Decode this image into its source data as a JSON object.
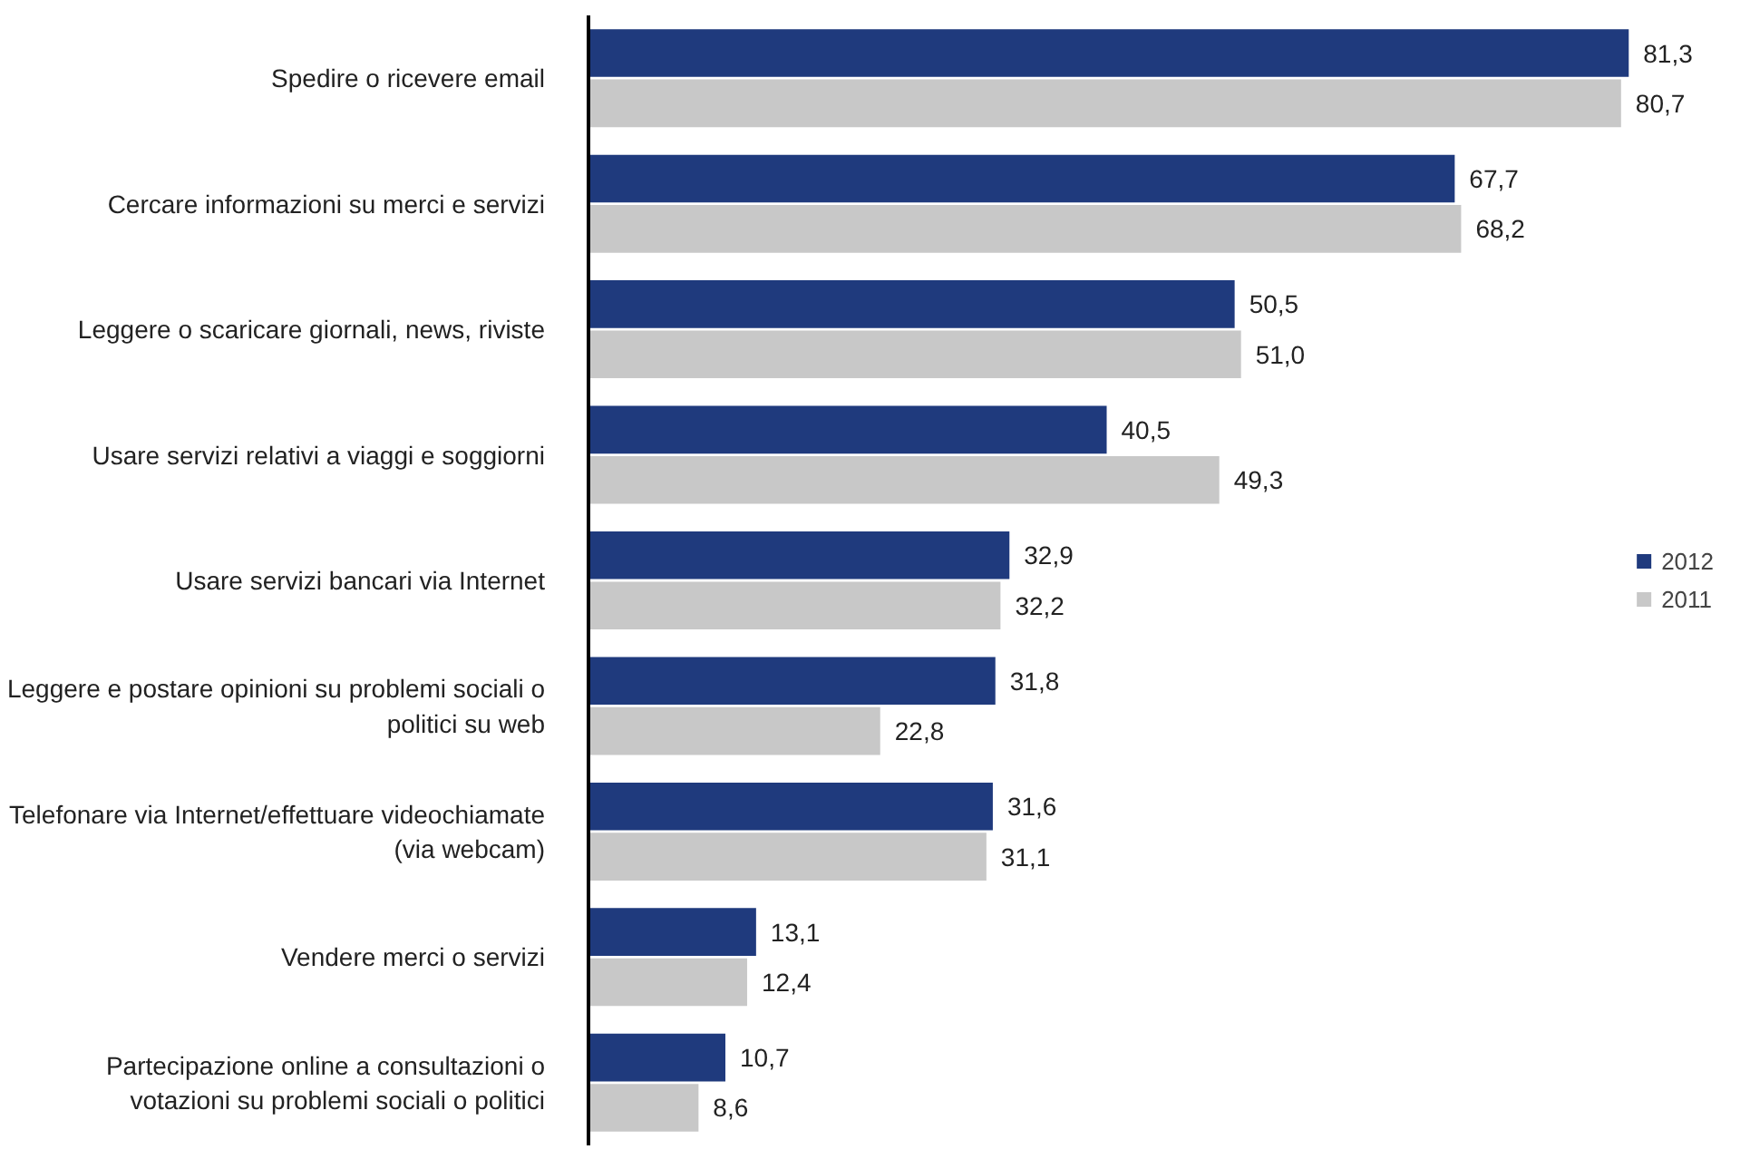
{
  "chart_data": {
    "type": "bar",
    "orientation": "horizontal",
    "categories": [
      "Spedire o ricevere email",
      "Cercare informazioni su merci e servizi",
      "Leggere o scaricare giornali, news, riviste",
      "Usare servizi relativi a viaggi e soggiorni",
      "Usare servizi bancari via Internet",
      "Leggere e postare opinioni su problemi sociali o politici su web",
      "Telefonare via Internet/effettuare videochiamate (via webcam)",
      "Vendere merci o servizi",
      "Partecipazione online a consultazioni o votazioni su problemi sociali o politici"
    ],
    "series": [
      {
        "name": "2012",
        "color": "#1f3a7d",
        "values": [
          81.3,
          67.7,
          50.5,
          40.5,
          32.9,
          31.8,
          31.6,
          13.1,
          10.7
        ],
        "value_labels": [
          "81,3",
          "67,7",
          "50,5",
          "40,5",
          "32,9",
          "31,8",
          "31,6",
          "13,1",
          "10,7"
        ]
      },
      {
        "name": "2011",
        "color": "#c8c8c8",
        "values": [
          80.7,
          68.2,
          51.0,
          49.3,
          32.2,
          22.8,
          31.1,
          12.4,
          8.6
        ],
        "value_labels": [
          "80,7",
          "68,2",
          "51,0",
          "49,3",
          "32,2",
          "22,8",
          "31,1",
          "12,4",
          "8,6"
        ]
      }
    ],
    "legend": "right",
    "grid": false
  }
}
